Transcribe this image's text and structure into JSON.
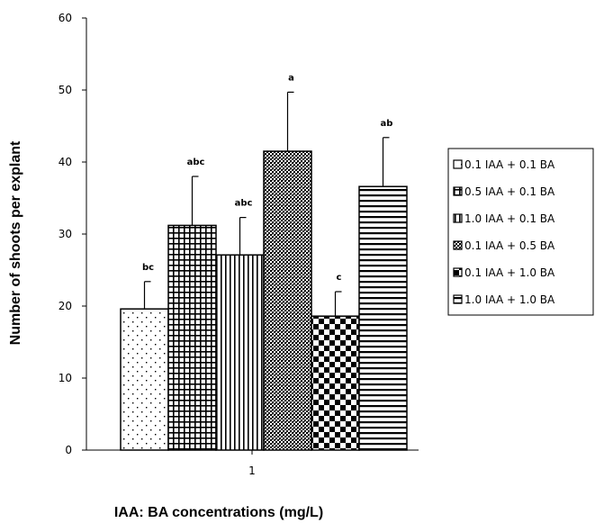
{
  "chart_data": {
    "type": "bar",
    "title": "",
    "xlabel": "IAA: BA concentrations (mg/L)",
    "ylabel": "Number of shoots per explant",
    "categories": [
      "1"
    ],
    "ylim": [
      0,
      60
    ],
    "yticks": [
      0,
      10,
      20,
      30,
      40,
      50,
      60
    ],
    "legend_position": "right",
    "grid": false,
    "series": [
      {
        "name": "0.1 IAA + 0.1 BA",
        "value": 19.6,
        "error": 3.8,
        "significance": "bc",
        "pattern": "dots"
      },
      {
        "name": "0.5 IAA + 0.1 BA",
        "value": 31.2,
        "error": 6.8,
        "significance": "abc",
        "pattern": "grid"
      },
      {
        "name": "1.0 IAA + 0.1 BA",
        "value": 27.1,
        "error": 5.2,
        "significance": "abc",
        "pattern": "vertical"
      },
      {
        "name": "0.1 IAA + 0.5 BA",
        "value": 41.5,
        "error": 8.2,
        "significance": "a",
        "pattern": "finecheck"
      },
      {
        "name": "0.1 IAA + 1.0 BA",
        "value": 18.6,
        "error": 3.4,
        "significance": "c",
        "pattern": "checker"
      },
      {
        "name": "1.0 IAA + 1.0 BA",
        "value": 36.6,
        "error": 6.8,
        "significance": "ab",
        "pattern": "horizontal"
      }
    ]
  }
}
